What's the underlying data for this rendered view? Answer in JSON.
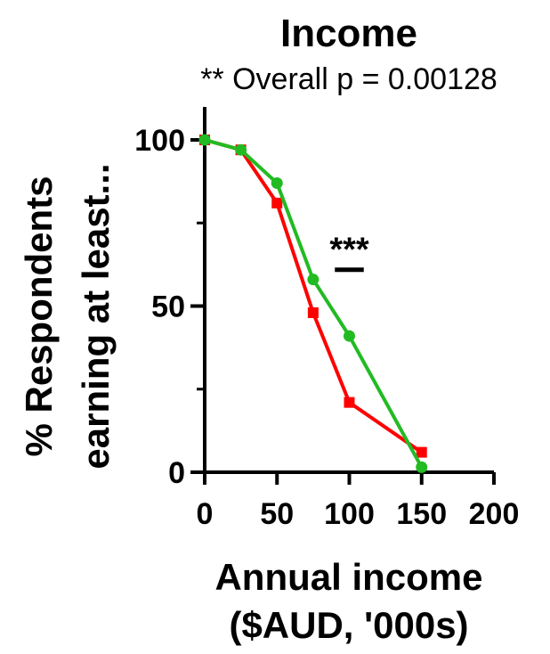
{
  "chart_data": {
    "type": "line",
    "title": "Income",
    "subtitle": "** Overall p = 0.00128",
    "xlabel_lines": [
      "Annual income",
      "($AUD, '000s)"
    ],
    "ylabel_lines": [
      "% Respondents",
      "earning at least..."
    ],
    "xlim": [
      0,
      200
    ],
    "ylim": [
      0,
      100
    ],
    "x_ticks": [
      0,
      50,
      100,
      150,
      200
    ],
    "y_ticks": [
      0,
      50,
      100
    ],
    "grid": false,
    "series": [
      {
        "marker": "square",
        "color": "#ff0000",
        "x": [
          0,
          25,
          50,
          75,
          100,
          150
        ],
        "y": [
          100,
          97,
          81,
          48,
          21,
          6
        ]
      },
      {
        "marker": "circle",
        "color": "#22bb22",
        "x": [
          0,
          25,
          50,
          75,
          100,
          150
        ],
        "y": [
          100,
          97,
          87,
          58,
          41,
          1.5
        ]
      }
    ],
    "annotations": [
      {
        "text": "***",
        "x": 100,
        "y": 62,
        "x_bar": [
          90,
          110
        ]
      }
    ]
  }
}
